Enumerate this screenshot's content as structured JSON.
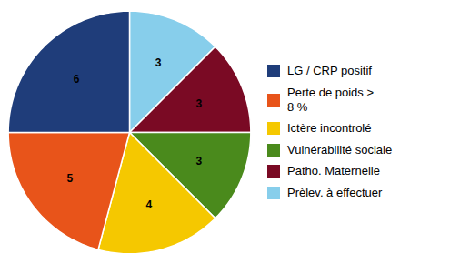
{
  "chart_data": {
    "type": "pie",
    "categories": [
      "Prèlev. à effectuer",
      "Patho. Maternelle",
      "Vulnérabilité sociale",
      "Ictère incontrolé",
      "Perte de poids >\n8 %",
      "LG / CRP positif"
    ],
    "values": [
      3,
      3,
      3,
      4,
      5,
      6
    ],
    "colors": [
      "#87ceeb",
      "#7a0a24",
      "#4a8a1c",
      "#f5c800",
      "#e8541a",
      "#1f3d7a"
    ],
    "data_labels": true,
    "legend": "right"
  }
}
